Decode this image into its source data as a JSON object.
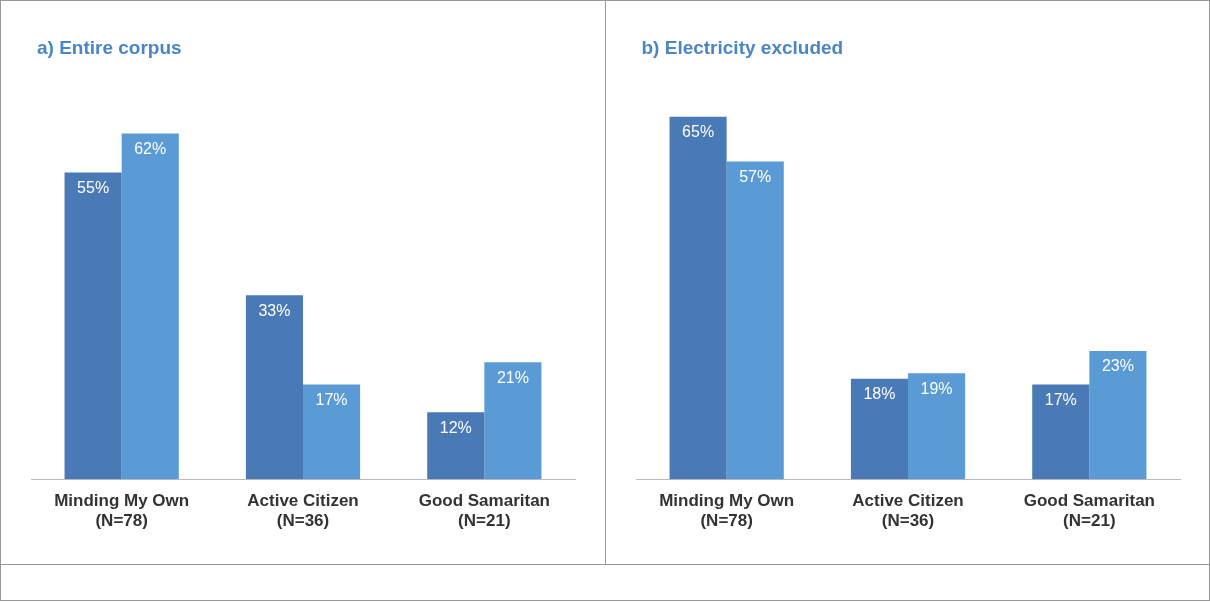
{
  "chart_data": [
    {
      "type": "bar",
      "title": "a) Entire corpus",
      "categories": [
        "Minding My Own\n(N=78)",
        "Active Citizen\n(N=36)",
        "Good Samaritan\n(N=21)"
      ],
      "series": [
        {
          "color": "#4a7ab5",
          "values": [
            55,
            33,
            12
          ],
          "value_labels": [
            "55%",
            "33%",
            "12%"
          ]
        },
        {
          "color": "#5b9bd5",
          "values": [
            62,
            17,
            21
          ],
          "value_labels": [
            "62%",
            "17%",
            "21%"
          ]
        }
      ],
      "grid": false,
      "legend": false,
      "tick_labels": "x"
    },
    {
      "type": "bar",
      "title": "b) Electricity excluded",
      "categories": [
        "Minding My Own\n(N=78)",
        "Active Citizen\n(N=36)",
        "Good Samaritan\n(N=21)"
      ],
      "series": [
        {
          "color": "#4a7ab5",
          "values": [
            65,
            18,
            17
          ],
          "value_labels": [
            "65%",
            "18%",
            "17%"
          ]
        },
        {
          "color": "#5b9bd5",
          "values": [
            57,
            19,
            23
          ],
          "value_labels": [
            "57%",
            "19%",
            "23%"
          ]
        }
      ],
      "grid": false,
      "legend": false,
      "tick_labels": "x"
    }
  ]
}
